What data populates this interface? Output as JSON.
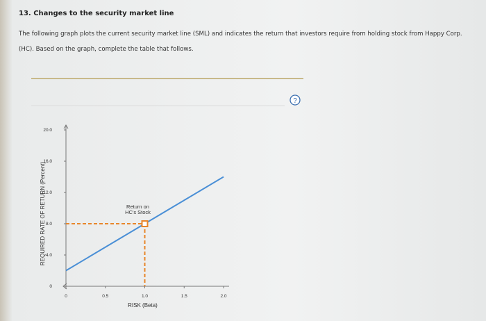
{
  "question_title": "13. Changes to the security market line",
  "paragraph": [
    "The following graph plots the current security market line (SML) and indicates the return that investors require from holding stock from Happy Corp.",
    "(HC). Based on the graph, complete the table that follows."
  ],
  "help_icon": "?",
  "chart_data": {
    "type": "line",
    "xlabel": "RISK (Beta)",
    "ylabel": "REQUIRED RATE OF RETURN (Percent)",
    "xlim": [
      0,
      2
    ],
    "ylim": [
      0,
      20
    ],
    "xticks": [
      0,
      0.5,
      {
        "value": 1,
        "label": "1.0"
      },
      1.5,
      {
        "value": 2,
        "label": "2.0"
      }
    ],
    "yticks": [
      0,
      {
        "value": 4,
        "label": "4.0"
      },
      {
        "value": 8,
        "label": "8.0"
      },
      {
        "value": 12,
        "label": "12.0"
      },
      {
        "value": 16,
        "label": "16.0"
      },
      {
        "value": 20,
        "label": "20.0"
      }
    ],
    "series": [
      {
        "color": "#4a8fd6",
        "x": [
          0,
          2
        ],
        "values": [
          2,
          14
        ]
      }
    ],
    "points": [
      {
        "x": 1,
        "y": 8,
        "color": "#e8862a",
        "label": [
          "Return on",
          "HC's Stock"
        ]
      }
    ]
  }
}
